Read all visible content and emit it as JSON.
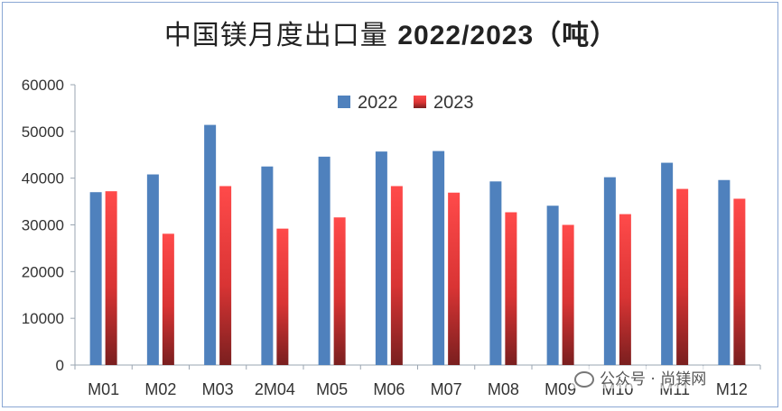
{
  "title": {
    "main": "中国镁月度出口量",
    "sub": "2022/2023（吨）"
  },
  "watermark": "公众号 · 尚镁网",
  "colors": {
    "s2022": "#4f81bd",
    "s2023_top": "#ff4a4a",
    "s2023_bottom": "#7a1f1f",
    "axis": "#9aa5b1"
  },
  "chart_data": {
    "type": "bar",
    "categories": [
      "M01",
      "M02",
      "M03",
      "2M04",
      "M05",
      "M06",
      "M07",
      "M08",
      "M09",
      "M10",
      "M11",
      "M12"
    ],
    "series": [
      {
        "name": "2022",
        "values": [
          37000,
          40800,
          51400,
          42500,
          44600,
          45700,
          45800,
          39300,
          34100,
          40200,
          43300,
          39600
        ]
      },
      {
        "name": "2023",
        "values": [
          37200,
          28100,
          38300,
          29200,
          31600,
          38300,
          36900,
          32700,
          30000,
          32300,
          37700,
          35600
        ]
      }
    ],
    "ylim": [
      0,
      60000
    ],
    "yticks": [
      0,
      10000,
      20000,
      30000,
      40000,
      50000,
      60000
    ],
    "legend": "top-center",
    "grid": false
  }
}
